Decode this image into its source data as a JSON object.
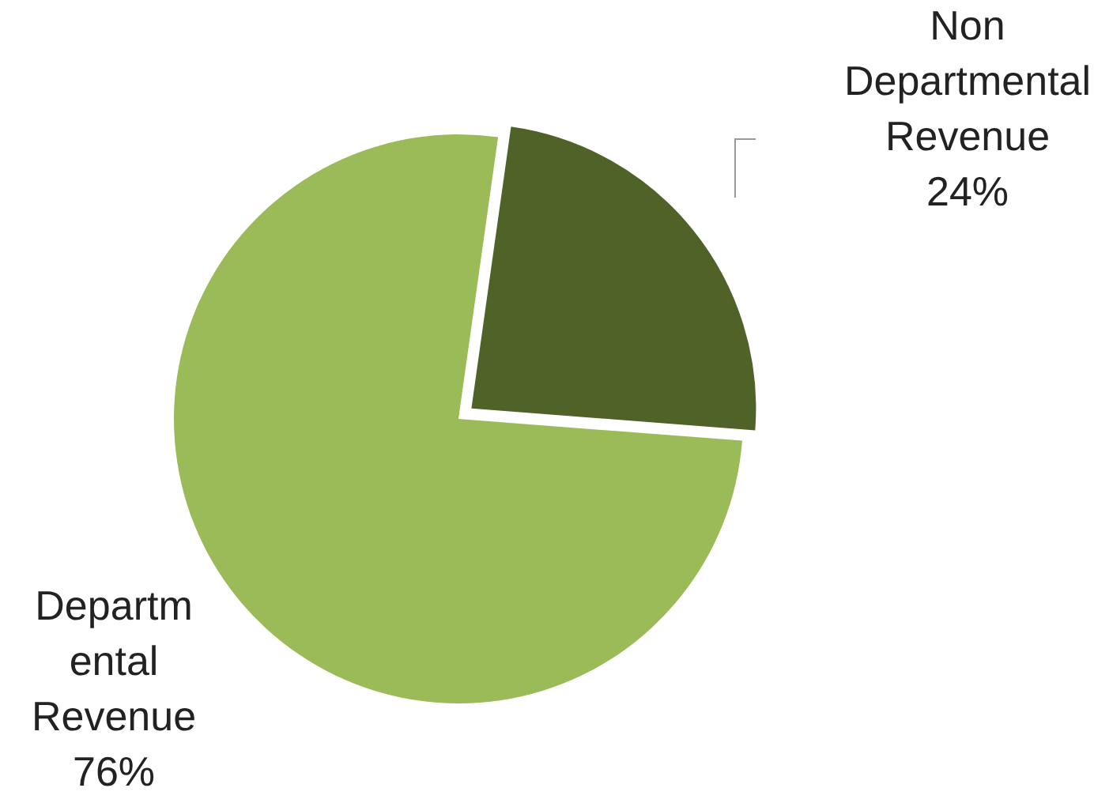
{
  "chart_data": {
    "type": "pie",
    "categories": [
      "Non Departmental Revenue",
      "Departmental Revenue"
    ],
    "values": [
      24,
      76
    ],
    "colors": [
      "#4f6228",
      "#9bbb59"
    ],
    "value_labels": [
      "24%",
      "76%"
    ],
    "legend": false
  }
}
